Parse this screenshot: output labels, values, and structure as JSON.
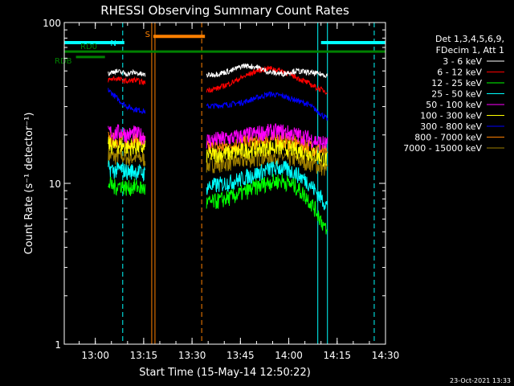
{
  "chart_data": {
    "type": "line",
    "title": "RHESSI Observing Summary Count Rates",
    "xlabel": "Start Time (15-May-14 12:50:22)",
    "ylabel": "Count Rate (s⁻¹ detector⁻¹)",
    "y_scale": "log",
    "ylim": [
      1,
      100
    ],
    "xlim": [
      "12:50:22",
      "14:30:00"
    ],
    "x_ticks": [
      "13:00",
      "13:15",
      "13:30",
      "13:45",
      "14:00",
      "14:15",
      "14:30"
    ],
    "y_ticks": [
      "1",
      "10",
      "100"
    ],
    "grid": false,
    "legend_position": "right",
    "legend_header": [
      "Det 1,3,4,5,6,9,",
      "FDecim 1, Att 1"
    ],
    "timestamp": "23-Oct-2021 13:33",
    "flags": [
      {
        "label": "N",
        "color": "#00ffff",
        "segments": [
          [
            "12:50:22",
            "13:09:00"
          ],
          [
            "14:10:00",
            "14:30:00"
          ]
        ],
        "level": 75
      },
      {
        "label": "S",
        "color": "#ff8000",
        "segments": [
          [
            "13:18:00",
            "13:34:00"
          ]
        ],
        "level": 82
      },
      {
        "label": "RD0",
        "color": "#008000",
        "segments": [
          [
            "12:50:22",
            "14:30:00"
          ]
        ],
        "level": 66
      },
      {
        "label": "RDB",
        "color": "#008000",
        "segments": [
          [
            "12:54:00",
            "13:03:00"
          ]
        ],
        "level": 61
      }
    ],
    "vertical_markers": [
      {
        "time": "12:50:22",
        "color": "#00ffff",
        "style": "solid"
      },
      {
        "time": "13:08:30",
        "color": "#00ffff",
        "style": "dashed"
      },
      {
        "time": "13:17:30",
        "color": "#ff8000",
        "style": "solid"
      },
      {
        "time": "13:18:30",
        "color": "#ff8000",
        "style": "solid"
      },
      {
        "time": "13:33:00",
        "color": "#ff8000",
        "style": "dashed"
      },
      {
        "time": "14:09:00",
        "color": "#00ffff",
        "style": "solid"
      },
      {
        "time": "14:12:00",
        "color": "#00ffff",
        "style": "solid"
      },
      {
        "time": "14:26:30",
        "color": "#00ffff",
        "style": "dashed"
      }
    ],
    "series": [
      {
        "name": "3 - 6 keV",
        "color": "#ffffff",
        "segments": [
          {
            "t": [
              "13:04:00",
              "13:06:00",
              "13:08:00",
              "13:10:00",
              "13:12:00",
              "13:15:30"
            ],
            "v": [
              48,
              50,
              49,
              48,
              49,
              47
            ]
          },
          {
            "t": [
              "13:34:30",
              "13:38:00",
              "13:42:00",
              "13:46:00",
              "13:50:00",
              "13:54:00",
              "13:58:00",
              "14:02:00",
              "14:06:00",
              "14:09:00",
              "14:12:00"
            ],
            "v": [
              47,
              48,
              50,
              54,
              53,
              49,
              48,
              50,
              49,
              48,
              47
            ]
          }
        ]
      },
      {
        "name": "6 - 12 keV",
        "color": "#ff0000",
        "segments": [
          {
            "t": [
              "13:04:00",
              "13:06:00",
              "13:08:00",
              "13:10:00",
              "13:12:00",
              "13:15:30"
            ],
            "v": [
              44,
              45,
              44,
              43,
              44,
              42
            ]
          },
          {
            "t": [
              "13:34:30",
              "13:38:00",
              "13:42:00",
              "13:46:00",
              "13:50:00",
              "13:54:00",
              "13:58:00",
              "14:02:00",
              "14:06:00",
              "14:09:00",
              "14:12:00"
            ],
            "v": [
              38,
              39,
              42,
              46,
              50,
              52,
              50,
              46,
              42,
              39,
              37
            ]
          }
        ]
      },
      {
        "name": "12 - 25 keV",
        "color": "#00ff00",
        "segments": [
          {
            "t": [
              "13:04:00",
              "13:06:00",
              "13:08:00",
              "13:10:00",
              "13:12:00",
              "13:15:30"
            ],
            "v": [
              10,
              9.5,
              9.8,
              9.3,
              9.6,
              9.2
            ]
          },
          {
            "t": [
              "13:34:30",
              "13:38:00",
              "13:42:00",
              "13:46:00",
              "13:50:00",
              "13:54:00",
              "13:58:00",
              "14:02:00",
              "14:06:00",
              "14:09:00",
              "14:12:00"
            ],
            "v": [
              7.5,
              7.8,
              8.2,
              8.8,
              9.5,
              10.2,
              10.4,
              9.6,
              8.0,
              6.5,
              4.8
            ]
          }
        ]
      },
      {
        "name": "25 - 50 keV",
        "color": "#00ffff",
        "segments": [
          {
            "t": [
              "13:04:00",
              "13:06:00",
              "13:08:00",
              "13:10:00",
              "13:12:00",
              "13:15:30"
            ],
            "v": [
              12.5,
              12,
              12.3,
              11.8,
              12,
              11.5
            ]
          },
          {
            "t": [
              "13:34:30",
              "13:38:00",
              "13:42:00",
              "13:46:00",
              "13:50:00",
              "13:54:00",
              "13:58:00",
              "14:02:00",
              "14:06:00",
              "14:09:00",
              "14:12:00"
            ],
            "v": [
              9.5,
              9.8,
              10.2,
              10.8,
              11.5,
              12.3,
              12.5,
              11.6,
              10.2,
              8.6,
              7.2
            ]
          }
        ]
      },
      {
        "name": "50 - 100 keV",
        "color": "#ff00ff",
        "segments": [
          {
            "t": [
              "13:04:00",
              "13:06:00",
              "13:08:00",
              "13:10:00",
              "13:12:00",
              "13:15:30"
            ],
            "v": [
              21,
              20.5,
              21,
              20,
              20.5,
              19.5
            ]
          },
          {
            "t": [
              "13:34:30",
              "13:38:00",
              "13:42:00",
              "13:46:00",
              "13:50:00",
              "13:54:00",
              "13:58:00",
              "14:02:00",
              "14:06:00",
              "14:09:00",
              "14:12:00"
            ],
            "v": [
              18.5,
              18.8,
              19.2,
              19.8,
              20.5,
              21,
              21,
              20.2,
              19.2,
              18.2,
              17.5
            ]
          }
        ]
      },
      {
        "name": "100 - 300 keV",
        "color": "#ffff00",
        "segments": [
          {
            "t": [
              "13:04:00",
              "13:06:00",
              "13:08:00",
              "13:10:00",
              "13:12:00",
              "13:15:30"
            ],
            "v": [
              17.5,
              17,
              17.3,
              16.8,
              17,
              16.5
            ]
          },
          {
            "t": [
              "13:34:30",
              "13:38:00",
              "13:42:00",
              "13:46:00",
              "13:50:00",
              "13:54:00",
              "13:58:00",
              "14:02:00",
              "14:06:00",
              "14:09:00",
              "14:12:00"
            ],
            "v": [
              15,
              15.2,
              15.5,
              16,
              16.4,
              16.8,
              16.8,
              16.2,
              15.6,
              14.8,
              14
            ]
          }
        ]
      },
      {
        "name": "300 - 800 keV",
        "color": "#0000ff",
        "segments": [
          {
            "t": [
              "13:04:00",
              "13:06:00",
              "13:08:00",
              "13:10:00",
              "13:12:00",
              "13:15:30"
            ],
            "v": [
              38,
              35,
              32,
              30,
              29,
              28
            ]
          },
          {
            "t": [
              "13:34:30",
              "13:38:00",
              "13:42:00",
              "13:46:00",
              "13:50:00",
              "13:54:00",
              "13:58:00",
              "14:02:00",
              "14:06:00",
              "14:09:00",
              "14:12:00"
            ],
            "v": [
              30,
              30.5,
              31,
              32,
              34,
              36,
              35,
              33,
              31,
              28,
              25
            ]
          }
        ]
      },
      {
        "name": "800 - 7000 keV",
        "color": "#ff8000",
        "segments": [
          {
            "t": [
              "13:04:00",
              "13:06:00",
              "13:08:00",
              "13:10:00",
              "13:12:00",
              "13:15:30"
            ],
            "v": [
              19,
              18.5,
              19,
              18.2,
              18.6,
              18
            ]
          },
          {
            "t": [
              "13:34:30",
              "13:38:00",
              "13:42:00",
              "13:46:00",
              "13:50:00",
              "13:54:00",
              "13:58:00",
              "14:02:00",
              "14:06:00",
              "14:09:00",
              "14:12:00"
            ],
            "v": [
              16.5,
              16.8,
              17.2,
              17.8,
              18.3,
              18.8,
              18.7,
              18,
              17.2,
              16.2,
              15.2
            ]
          }
        ]
      },
      {
        "name": "7000 - 15000 keV",
        "color": "#a08000",
        "segments": [
          {
            "t": [
              "13:04:00",
              "13:06:00",
              "13:08:00",
              "13:10:00",
              "13:12:00",
              "13:15:30"
            ],
            "v": [
              15,
              14.6,
              14.9,
              14.3,
              14.6,
              14.1
            ]
          },
          {
            "t": [
              "13:34:30",
              "13:38:00",
              "13:42:00",
              "13:46:00",
              "13:50:00",
              "13:54:00",
              "13:58:00",
              "14:02:00",
              "14:06:00",
              "14:09:00",
              "14:12:00"
            ],
            "v": [
              13,
              13.2,
              13.5,
              13.9,
              14.3,
              14.7,
              14.6,
              14.1,
              13.5,
              12.8,
              12.1
            ]
          }
        ]
      }
    ]
  }
}
